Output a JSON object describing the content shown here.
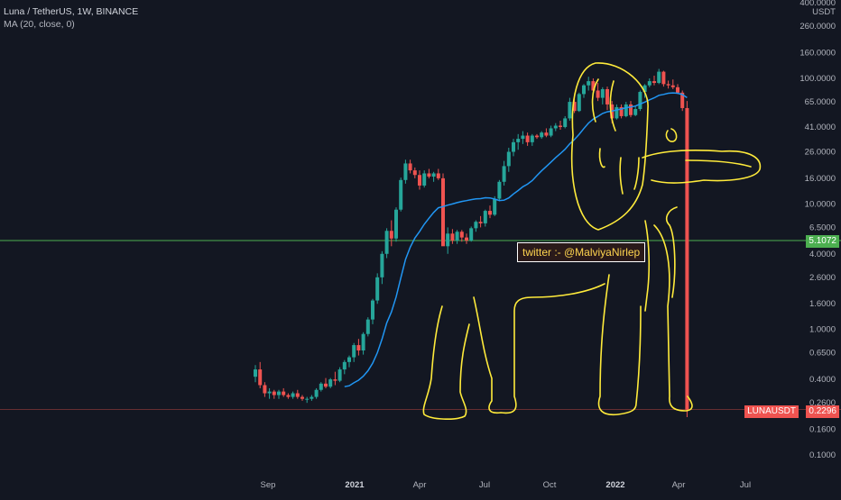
{
  "header": {
    "title": "Luna / TetherUS, 1W, BINANCE",
    "indicator": "MA (20, close, 0)"
  },
  "annotation": "twitter :- @MalviyaNirlep",
  "colors": {
    "background": "#131722",
    "up": "#26a69a",
    "down": "#ef5350",
    "ma": "#2196f3",
    "hline": "#4caf50",
    "drawing": "#ffeb3b"
  },
  "chart_data": {
    "type": "candlestick",
    "symbol": "LUNAUSDT",
    "scale": "log",
    "currency": "USDT",
    "price_labels": [
      "400.0000",
      "260.0000",
      "160.0000",
      "100.0000",
      "65.0000",
      "41.0000",
      "26.0000",
      "16.0000",
      "10.0000",
      "6.5000",
      "4.0000",
      "2.6000",
      "1.6000",
      "1.0000",
      "0.6500",
      "0.4000",
      "0.2600",
      "0.1600",
      "0.1000"
    ],
    "ylim": [
      0.08,
      420
    ],
    "x_labels": [
      "Sep",
      "2021",
      "Apr",
      "Jul",
      "Oct",
      "2022",
      "Apr",
      "Jul"
    ],
    "horizontal_line": {
      "value": 5.1072,
      "label": "5.1072"
    },
    "last_price": {
      "value": 0.2296,
      "symbol_label": "LUNAUSDT",
      "label": "0.2296"
    },
    "candles_ohlc": [
      [
        0.42,
        0.52,
        0.38,
        0.48
      ],
      [
        0.48,
        0.55,
        0.34,
        0.36
      ],
      [
        0.36,
        0.38,
        0.29,
        0.31
      ],
      [
        0.31,
        0.34,
        0.28,
        0.32
      ],
      [
        0.32,
        0.33,
        0.28,
        0.3
      ],
      [
        0.3,
        0.33,
        0.28,
        0.32
      ],
      [
        0.32,
        0.34,
        0.29,
        0.3
      ],
      [
        0.3,
        0.31,
        0.28,
        0.29
      ],
      [
        0.29,
        0.32,
        0.28,
        0.31
      ],
      [
        0.31,
        0.33,
        0.28,
        0.29
      ],
      [
        0.29,
        0.3,
        0.27,
        0.28
      ],
      [
        0.28,
        0.29,
        0.26,
        0.28
      ],
      [
        0.28,
        0.3,
        0.27,
        0.29
      ],
      [
        0.29,
        0.34,
        0.28,
        0.33
      ],
      [
        0.33,
        0.38,
        0.32,
        0.37
      ],
      [
        0.37,
        0.41,
        0.34,
        0.35
      ],
      [
        0.35,
        0.41,
        0.34,
        0.4
      ],
      [
        0.4,
        0.46,
        0.36,
        0.39
      ],
      [
        0.39,
        0.5,
        0.38,
        0.48
      ],
      [
        0.48,
        0.57,
        0.44,
        0.55
      ],
      [
        0.55,
        0.62,
        0.5,
        0.6
      ],
      [
        0.6,
        0.78,
        0.55,
        0.75
      ],
      [
        0.75,
        0.84,
        0.62,
        0.68
      ],
      [
        0.68,
        0.95,
        0.63,
        0.92
      ],
      [
        0.92,
        1.25,
        0.88,
        1.2
      ],
      [
        1.2,
        1.75,
        1.1,
        1.7
      ],
      [
        1.7,
        2.8,
        1.6,
        2.6
      ],
      [
        2.6,
        4.2,
        2.3,
        4.0
      ],
      [
        4.0,
        6.4,
        3.7,
        6.1
      ],
      [
        6.1,
        7.4,
        4.6,
        5.3
      ],
      [
        5.3,
        9.4,
        5.0,
        9.0
      ],
      [
        9.0,
        16.2,
        8.7,
        15.5
      ],
      [
        15.5,
        22.5,
        14.5,
        21.0
      ],
      [
        21.0,
        22.5,
        17.5,
        18.5
      ],
      [
        18.5,
        19.5,
        16.0,
        17.0
      ],
      [
        17.0,
        18.5,
        13.0,
        14.0
      ],
      [
        14.0,
        18.5,
        13.5,
        17.5
      ],
      [
        17.5,
        19.0,
        16.0,
        16.5
      ],
      [
        16.5,
        18.0,
        15.0,
        17.5
      ],
      [
        17.5,
        19.0,
        15.5,
        16.0
      ],
      [
        16.0,
        17.5,
        10.0,
        4.6
      ],
      [
        4.6,
        6.5,
        4.0,
        5.8
      ],
      [
        5.8,
        6.3,
        4.8,
        5.1
      ],
      [
        5.1,
        6.2,
        4.8,
        6.0
      ],
      [
        6.0,
        6.2,
        5.0,
        5.4
      ],
      [
        5.4,
        5.8,
        4.8,
        5.1
      ],
      [
        5.1,
        6.6,
        5.0,
        6.4
      ],
      [
        6.4,
        7.4,
        6.0,
        7.2
      ],
      [
        7.2,
        8.0,
        6.5,
        7.0
      ],
      [
        7.0,
        9.0,
        6.6,
        8.8
      ],
      [
        8.8,
        9.7,
        7.7,
        8.2
      ],
      [
        8.2,
        11.5,
        8.0,
        11.0
      ],
      [
        11.0,
        15.5,
        10.5,
        15.0
      ],
      [
        15.0,
        22.0,
        14.0,
        20.0
      ],
      [
        20.0,
        28.0,
        18.0,
        26.0
      ],
      [
        26.0,
        33.0,
        24.0,
        31.0
      ],
      [
        31.0,
        36.0,
        27.0,
        33.0
      ],
      [
        33.0,
        38.0,
        30.0,
        35.0
      ],
      [
        35.0,
        37.0,
        29.0,
        31.0
      ],
      [
        31.0,
        36.0,
        29.0,
        35.0
      ],
      [
        35.0,
        36.0,
        33.0,
        34.0
      ],
      [
        34.0,
        38.0,
        33.0,
        37.0
      ],
      [
        37.0,
        40.0,
        34.0,
        35.0
      ],
      [
        35.0,
        42.0,
        34.0,
        40.0
      ],
      [
        40.0,
        44.0,
        38.0,
        42.0
      ],
      [
        42.0,
        46.0,
        39.0,
        41.0
      ],
      [
        41.0,
        50.0,
        40.0,
        48.0
      ],
      [
        48.0,
        70.0,
        46.0,
        65.0
      ],
      [
        65.0,
        72.0,
        53.0,
        55.0
      ],
      [
        55.0,
        77.0,
        54.0,
        75.0
      ],
      [
        75.0,
        90.0,
        70.0,
        88.0
      ],
      [
        88.0,
        103.0,
        80.0,
        95.0
      ],
      [
        95.0,
        100.0,
        77.0,
        80.0
      ],
      [
        80.0,
        92.0,
        66.0,
        70.0
      ],
      [
        70.0,
        85.0,
        62.0,
        82.0
      ],
      [
        82.0,
        86.0,
        56.0,
        62.0
      ],
      [
        62.0,
        66.0,
        44.0,
        48.0
      ],
      [
        48.0,
        62.0,
        47.0,
        59.0
      ],
      [
        59.0,
        62.0,
        48.0,
        50.0
      ],
      [
        50.0,
        65.0,
        49.0,
        62.0
      ],
      [
        62.0,
        66.0,
        49.0,
        51.0
      ],
      [
        51.0,
        60.0,
        50.0,
        57.0
      ],
      [
        57.0,
        80.0,
        55.0,
        78.0
      ],
      [
        78.0,
        90.0,
        70.0,
        88.0
      ],
      [
        88.0,
        100.0,
        85.0,
        95.0
      ],
      [
        95.0,
        105.0,
        88.0,
        92.0
      ],
      [
        92.0,
        119.0,
        90.0,
        113.0
      ],
      [
        113.0,
        115.0,
        86.0,
        90.0
      ],
      [
        90.0,
        96.0,
        83.0,
        88.0
      ],
      [
        88.0,
        98.0,
        82.0,
        85.0
      ],
      [
        85.0,
        90.0,
        75.0,
        77.0
      ],
      [
        77.0,
        80.0,
        55.0,
        58.0
      ],
      [
        58.0,
        66.0,
        0.2,
        0.2296
      ]
    ]
  }
}
